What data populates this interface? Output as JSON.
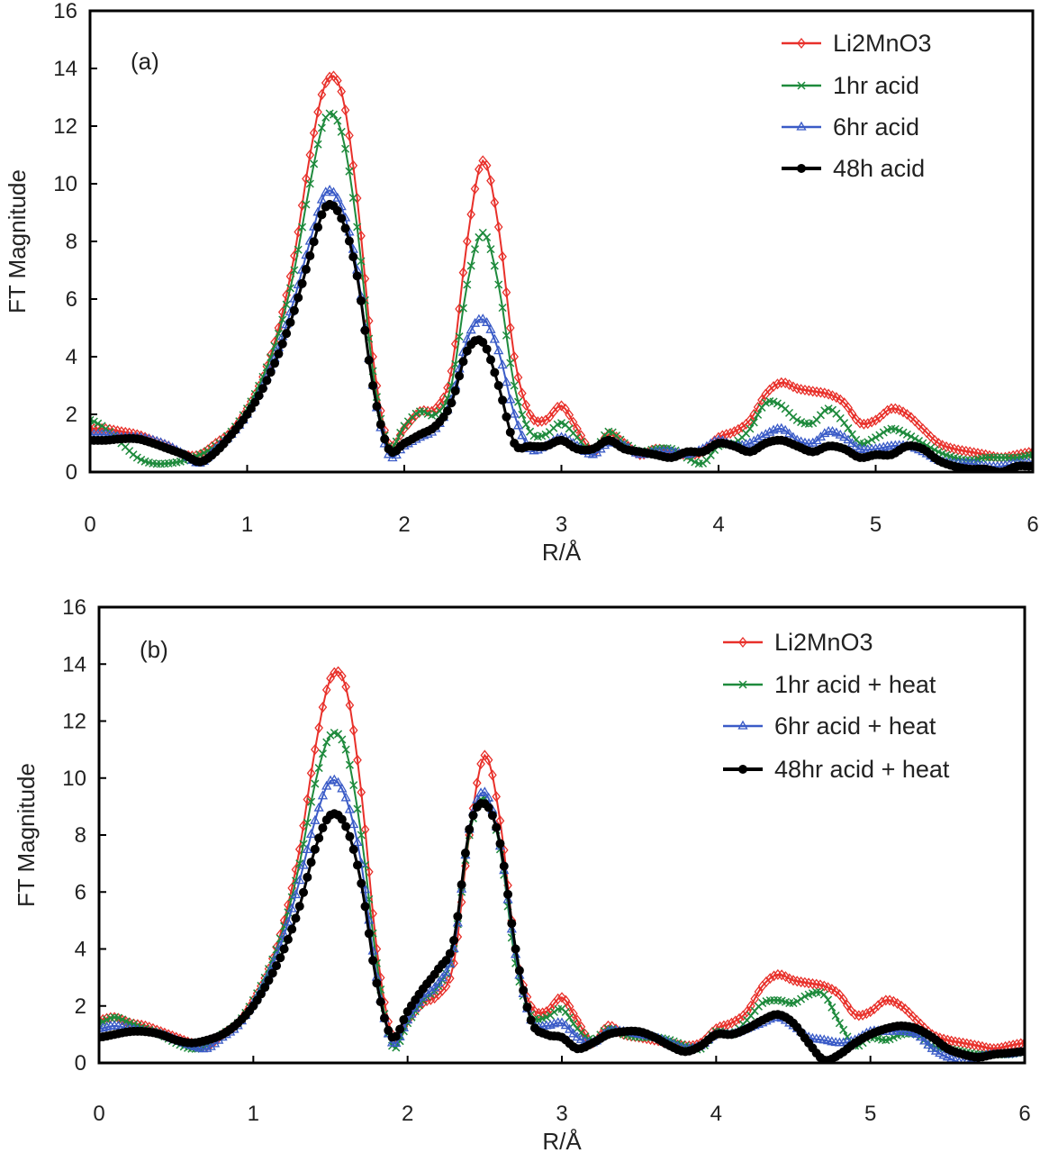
{
  "chart_data": [
    {
      "type": "line",
      "panel_label": "(a)",
      "xlabel": "R/Å",
      "ylabel": "FT Magnitude",
      "xlim": [
        0,
        6
      ],
      "ylim": [
        0,
        16
      ],
      "xticks": [
        "0",
        "1",
        "2",
        "3",
        "4",
        "5",
        "6"
      ],
      "yticks": [
        "0",
        "2",
        "4",
        "6",
        "8",
        "10",
        "12",
        "14",
        "16"
      ],
      "legend_position": "top-right",
      "x_start": 0,
      "x_step": 0.1,
      "series": [
        {
          "name": "Li2MnO3",
          "color": "#e8302a",
          "marker": "diamond-open",
          "values": [
            1.5,
            1.5,
            1.4,
            1.3,
            1.1,
            0.9,
            0.6,
            0.6,
            1.0,
            1.4,
            2.2,
            3.3,
            5.0,
            7.5,
            11.0,
            13.5,
            13.2,
            9.5,
            4.0,
            1.0,
            1.5,
            2.1,
            2.2,
            3.5,
            8.0,
            10.8,
            8.5,
            4.0,
            2.0,
            1.8,
            2.3,
            1.5,
            0.7,
            1.3,
            1.0,
            0.6,
            0.8,
            0.7,
            0.6,
            0.7,
            1.2,
            1.4,
            1.8,
            2.7,
            3.1,
            2.9,
            2.8,
            2.7,
            2.4,
            1.7,
            1.8,
            2.2,
            2.0,
            1.5,
            1.0,
            0.8,
            0.7,
            0.6,
            0.5,
            0.6,
            0.7
          ]
        },
        {
          "name": "1hr acid",
          "color": "#1e8a3c",
          "marker": "x",
          "values": [
            1.8,
            1.5,
            1.0,
            0.5,
            0.3,
            0.3,
            0.4,
            0.6,
            0.9,
            1.4,
            2.2,
            3.3,
            4.8,
            7.0,
            10.0,
            12.3,
            11.8,
            8.5,
            3.5,
            0.9,
            1.6,
            2.1,
            2.0,
            3.0,
            6.5,
            8.3,
            6.5,
            3.0,
            1.4,
            1.3,
            1.7,
            1.2,
            0.7,
            1.4,
            1.0,
            0.7,
            0.8,
            0.8,
            0.5,
            0.3,
            0.9,
            1.0,
            1.5,
            2.4,
            2.3,
            1.8,
            1.7,
            2.2,
            1.7,
            1.0,
            1.2,
            1.5,
            1.3,
            1.0,
            0.7,
            0.5,
            0.4,
            0.5,
            0.5,
            0.5,
            0.6
          ]
        },
        {
          "name": "6hr acid",
          "color": "#3a5bc7",
          "marker": "triangle-open",
          "values": [
            1.3,
            1.3,
            1.2,
            1.2,
            1.1,
            0.9,
            0.6,
            0.3,
            0.8,
            1.3,
            2.0,
            3.0,
            4.3,
            6.0,
            8.0,
            9.7,
            9.2,
            7.0,
            3.0,
            0.6,
            0.9,
            1.2,
            1.5,
            2.5,
            4.6,
            5.3,
            4.2,
            2.0,
            0.8,
            0.9,
            1.2,
            0.9,
            0.6,
            1.0,
            0.9,
            0.6,
            0.7,
            0.7,
            0.6,
            0.8,
            1.1,
            0.9,
            1.0,
            1.3,
            1.5,
            1.1,
            1.0,
            1.4,
            1.2,
            0.8,
            0.8,
            0.9,
            0.9,
            0.7,
            0.4,
            0.3,
            0.3,
            0.2,
            0.2,
            0.3,
            0.3
          ]
        },
        {
          "name": "48h acid",
          "color": "#000000",
          "marker": "circle-filled",
          "values": [
            1.1,
            1.1,
            1.15,
            1.15,
            1.0,
            0.8,
            0.6,
            0.35,
            0.7,
            1.3,
            2.0,
            2.9,
            4.1,
            5.6,
            7.5,
            9.2,
            8.8,
            6.8,
            3.0,
            0.8,
            1.0,
            1.3,
            1.6,
            2.4,
            4.2,
            4.5,
            3.0,
            1.0,
            0.9,
            0.9,
            1.1,
            0.8,
            0.8,
            1.1,
            0.8,
            0.7,
            0.6,
            0.5,
            0.7,
            0.7,
            1.0,
            0.9,
            0.7,
            1.0,
            1.1,
            0.9,
            0.7,
            0.9,
            0.8,
            0.5,
            0.6,
            0.6,
            0.9,
            0.8,
            0.4,
            0.2,
            0.1,
            0.1,
            0.0,
            0.2,
            0.2
          ]
        }
      ]
    },
    {
      "type": "line",
      "panel_label": "(b)",
      "xlabel": "R/Å",
      "ylabel": "FT Magnitude",
      "xlim": [
        0,
        6
      ],
      "ylim": [
        0,
        16
      ],
      "xticks": [
        "0",
        "1",
        "2",
        "3",
        "4",
        "5",
        "6"
      ],
      "yticks": [
        "0",
        "2",
        "4",
        "6",
        "8",
        "10",
        "12",
        "14",
        "16"
      ],
      "legend_position": "top-right",
      "x_start": 0,
      "x_step": 0.1,
      "series": [
        {
          "name": "Li2MnO3",
          "color": "#e8302a",
          "marker": "diamond-open",
          "values": [
            1.5,
            1.6,
            1.4,
            1.3,
            1.1,
            0.9,
            0.7,
            0.6,
            1.0,
            1.4,
            2.2,
            3.3,
            5.0,
            7.5,
            11.0,
            13.5,
            13.2,
            9.5,
            4.0,
            1.0,
            1.5,
            2.1,
            2.4,
            3.5,
            8.0,
            10.8,
            8.5,
            4.0,
            2.0,
            1.8,
            2.3,
            1.5,
            0.7,
            1.3,
            1.0,
            0.9,
            0.8,
            0.7,
            0.6,
            0.7,
            1.2,
            1.4,
            1.8,
            2.7,
            3.1,
            2.9,
            2.8,
            2.7,
            2.4,
            1.7,
            1.8,
            2.2,
            2.0,
            1.5,
            1.0,
            0.8,
            0.7,
            0.6,
            0.5,
            0.6,
            0.7
          ]
        },
        {
          "name": "1hr acid + heat",
          "color": "#1e8a3c",
          "marker": "x",
          "values": [
            1.4,
            1.6,
            1.4,
            1.2,
            1.0,
            0.7,
            0.5,
            0.6,
            1.0,
            1.4,
            2.2,
            3.3,
            4.8,
            7.0,
            9.8,
            11.5,
            11.0,
            8.0,
            3.5,
            0.6,
            1.4,
            2.2,
            2.7,
            4.0,
            8.0,
            9.3,
            7.5,
            3.5,
            1.7,
            1.6,
            1.9,
            1.2,
            0.8,
            1.2,
            1.0,
            0.9,
            0.9,
            0.8,
            0.6,
            0.5,
            1.1,
            1.0,
            1.5,
            2.1,
            2.2,
            2.1,
            2.4,
            2.4,
            1.4,
            0.6,
            0.9,
            0.8,
            1.0,
            1.0,
            0.6,
            0.5,
            0.4,
            0.3,
            0.3,
            0.3,
            0.4
          ]
        },
        {
          "name": "6hr acid + heat",
          "color": "#3a5bc7",
          "marker": "triangle-open",
          "values": [
            1.2,
            1.3,
            1.2,
            1.1,
            1.0,
            0.8,
            0.6,
            0.5,
            0.9,
            1.3,
            2.1,
            3.1,
            4.5,
            6.4,
            8.5,
            9.9,
            9.3,
            7.0,
            3.0,
            0.7,
            1.5,
            2.3,
            2.8,
            4.0,
            8.2,
            9.5,
            7.6,
            3.8,
            1.5,
            1.3,
            1.4,
            0.9,
            0.7,
            1.1,
            1.1,
            1.0,
            0.9,
            0.7,
            0.5,
            0.6,
            1.0,
            1.0,
            1.2,
            1.4,
            1.6,
            1.3,
            0.9,
            0.8,
            0.7,
            0.8,
            1.1,
            1.1,
            1.1,
            1.0,
            0.5,
            0.2,
            0.0,
            0.2,
            0.3,
            0.3,
            0.4
          ]
        },
        {
          "name": "48hr acid + heat",
          "color": "#000000",
          "marker": "circle-filled",
          "values": [
            0.9,
            1.0,
            1.1,
            1.1,
            1.0,
            0.8,
            0.7,
            0.8,
            1.0,
            1.4,
            2.0,
            2.9,
            4.0,
            5.5,
            7.5,
            8.7,
            8.3,
            6.3,
            2.8,
            0.9,
            1.8,
            2.6,
            3.3,
            4.3,
            8.2,
            9.1,
            7.7,
            4.0,
            1.5,
            1.0,
            0.9,
            0.5,
            0.7,
            1.0,
            1.1,
            1.1,
            0.9,
            0.6,
            0.4,
            0.6,
            1.0,
            1.0,
            1.2,
            1.5,
            1.7,
            1.4,
            0.7,
            0.1,
            0.3,
            0.7,
            1.0,
            1.2,
            1.3,
            1.2,
            0.9,
            0.5,
            0.3,
            0.2,
            0.3,
            0.35,
            0.4
          ]
        }
      ]
    }
  ]
}
